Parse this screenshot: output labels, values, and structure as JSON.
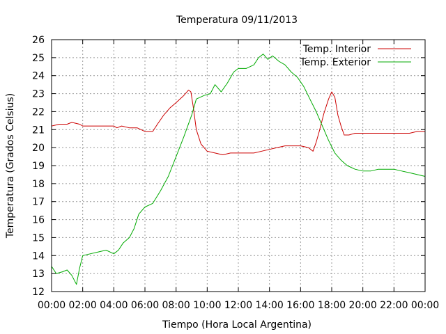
{
  "chart_data": {
    "type": "line",
    "title": "Temperatura 09/11/2013",
    "xlabel": "Tiempo (Hora Local Argentina)",
    "ylabel": "Temperatura (Grados Celsius)",
    "xlim": [
      0,
      24
    ],
    "ylim": [
      12,
      26
    ],
    "grid": true,
    "legend_position": "top-right",
    "x_tick_labels": [
      "00:00",
      "02:00",
      "04:00",
      "06:00",
      "08:00",
      "10:00",
      "12:00",
      "14:00",
      "16:00",
      "18:00",
      "20:00",
      "22:00",
      "00:00"
    ],
    "x_tick_values": [
      0,
      2,
      4,
      6,
      8,
      10,
      12,
      14,
      16,
      18,
      20,
      22,
      24
    ],
    "y_ticks": [
      12,
      13,
      14,
      15,
      16,
      17,
      18,
      19,
      20,
      21,
      22,
      23,
      24,
      25,
      26
    ],
    "series": [
      {
        "name": "Temp. Interior",
        "color": "#cc0000",
        "points": [
          [
            0,
            21.2
          ],
          [
            0.5,
            21.3
          ],
          [
            1,
            21.3
          ],
          [
            1.3,
            21.4
          ],
          [
            1.8,
            21.3
          ],
          [
            2,
            21.2
          ],
          [
            3,
            21.2
          ],
          [
            4,
            21.2
          ],
          [
            4.2,
            21.1
          ],
          [
            4.5,
            21.2
          ],
          [
            5,
            21.1
          ],
          [
            5.5,
            21.1
          ],
          [
            6,
            20.9
          ],
          [
            6.5,
            20.9
          ],
          [
            6.8,
            21.3
          ],
          [
            7.2,
            21.8
          ],
          [
            7.6,
            22.2
          ],
          [
            8,
            22.5
          ],
          [
            8.5,
            22.9
          ],
          [
            8.8,
            23.2
          ],
          [
            8.95,
            23.1
          ],
          [
            9.1,
            22.3
          ],
          [
            9.3,
            21.0
          ],
          [
            9.6,
            20.2
          ],
          [
            10,
            19.8
          ],
          [
            10.5,
            19.7
          ],
          [
            11,
            19.6
          ],
          [
            11.5,
            19.7
          ],
          [
            12,
            19.7
          ],
          [
            13,
            19.7
          ],
          [
            13.5,
            19.8
          ],
          [
            14,
            19.9
          ],
          [
            14.5,
            20.0
          ],
          [
            15,
            20.1
          ],
          [
            16,
            20.1
          ],
          [
            16.5,
            20.0
          ],
          [
            16.8,
            19.8
          ],
          [
            17,
            20.3
          ],
          [
            17.2,
            20.9
          ],
          [
            17.5,
            21.9
          ],
          [
            17.8,
            22.7
          ],
          [
            18,
            23.1
          ],
          [
            18.2,
            22.8
          ],
          [
            18.4,
            21.8
          ],
          [
            18.6,
            21.2
          ],
          [
            18.8,
            20.7
          ],
          [
            19.1,
            20.7
          ],
          [
            19.5,
            20.8
          ],
          [
            20,
            20.8
          ],
          [
            21,
            20.8
          ],
          [
            22,
            20.8
          ],
          [
            23,
            20.8
          ],
          [
            23.5,
            20.9
          ],
          [
            24,
            20.9
          ]
        ]
      },
      {
        "name": "Temp. Exterior",
        "color": "#00aa00",
        "points": [
          [
            0,
            13.4
          ],
          [
            0.3,
            13.0
          ],
          [
            0.7,
            13.1
          ],
          [
            1,
            13.2
          ],
          [
            1.3,
            12.9
          ],
          [
            1.6,
            12.4
          ],
          [
            1.8,
            13.3
          ],
          [
            2,
            14.0
          ],
          [
            2.5,
            14.1
          ],
          [
            3,
            14.2
          ],
          [
            3.5,
            14.3
          ],
          [
            4,
            14.1
          ],
          [
            4.3,
            14.3
          ],
          [
            4.6,
            14.7
          ],
          [
            5,
            15.0
          ],
          [
            5.3,
            15.5
          ],
          [
            5.6,
            16.3
          ],
          [
            6,
            16.7
          ],
          [
            6.5,
            16.9
          ],
          [
            7,
            17.6
          ],
          [
            7.5,
            18.4
          ],
          [
            8,
            19.5
          ],
          [
            8.5,
            20.6
          ],
          [
            9,
            21.8
          ],
          [
            9.3,
            22.7
          ],
          [
            9.8,
            22.9
          ],
          [
            10.2,
            23.0
          ],
          [
            10.5,
            23.5
          ],
          [
            10.9,
            23.1
          ],
          [
            11.3,
            23.6
          ],
          [
            11.7,
            24.2
          ],
          [
            12,
            24.4
          ],
          [
            12.5,
            24.4
          ],
          [
            13,
            24.6
          ],
          [
            13.3,
            25.0
          ],
          [
            13.6,
            25.2
          ],
          [
            13.9,
            24.9
          ],
          [
            14.2,
            25.1
          ],
          [
            14.6,
            24.8
          ],
          [
            15,
            24.6
          ],
          [
            15.4,
            24.2
          ],
          [
            15.8,
            23.9
          ],
          [
            16.2,
            23.4
          ],
          [
            16.6,
            22.7
          ],
          [
            17,
            22.0
          ],
          [
            17.4,
            21.2
          ],
          [
            17.8,
            20.4
          ],
          [
            18.2,
            19.7
          ],
          [
            18.6,
            19.3
          ],
          [
            19,
            19.0
          ],
          [
            19.5,
            18.8
          ],
          [
            20,
            18.7
          ],
          [
            20.5,
            18.7
          ],
          [
            21,
            18.8
          ],
          [
            21.5,
            18.8
          ],
          [
            22,
            18.8
          ],
          [
            22.5,
            18.7
          ],
          [
            23,
            18.6
          ],
          [
            23.5,
            18.5
          ],
          [
            24,
            18.4
          ]
        ]
      }
    ]
  }
}
